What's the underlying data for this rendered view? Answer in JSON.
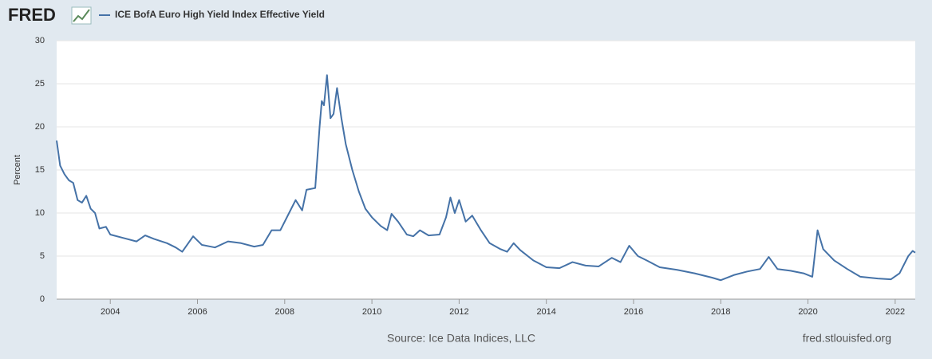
{
  "logo": "FRED",
  "chart_data": {
    "type": "line",
    "ylabel": "Percent",
    "source": "Source: Ice Data Indices, LLC",
    "site": "fred.stlouisfed.org",
    "x": [
      2002.77,
      2002.85,
      2002.95,
      2003.05,
      2003.15,
      2003.25,
      2003.35,
      2003.45,
      2003.55,
      2003.65,
      2003.75,
      2003.9,
      2004.0,
      2004.3,
      2004.6,
      2004.8,
      2005.0,
      2005.3,
      2005.5,
      2005.65,
      2005.9,
      2006.1,
      2006.4,
      2006.7,
      2007.0,
      2007.3,
      2007.5,
      2007.7,
      2007.9,
      2008.1,
      2008.25,
      2008.4,
      2008.5,
      2008.7,
      2008.8,
      2008.85,
      2008.9,
      2008.97,
      2009.05,
      2009.12,
      2009.2,
      2009.3,
      2009.4,
      2009.55,
      2009.7,
      2009.85,
      2010.0,
      2010.2,
      2010.35,
      2010.45,
      2010.6,
      2010.8,
      2010.95,
      2011.1,
      2011.3,
      2011.55,
      2011.7,
      2011.8,
      2011.9,
      2012.0,
      2012.15,
      2012.3,
      2012.5,
      2012.7,
      2012.95,
      2013.1,
      2013.25,
      2013.4,
      2013.7,
      2014.0,
      2014.3,
      2014.6,
      2014.9,
      2015.2,
      2015.5,
      2015.7,
      2015.9,
      2016.1,
      2016.3,
      2016.6,
      2017.0,
      2017.4,
      2017.8,
      2018.0,
      2018.3,
      2018.6,
      2018.9,
      2019.1,
      2019.3,
      2019.6,
      2019.9,
      2020.1,
      2020.22,
      2020.35,
      2020.6,
      2020.9,
      2021.2,
      2021.6,
      2021.9,
      2022.1,
      2022.3,
      2022.4,
      2022.46
    ],
    "series": [
      {
        "name": "ICE BofA Euro High Yield Index Effective Yield",
        "color": "#4572a7",
        "values": [
          18.4,
          15.5,
          14.5,
          13.8,
          13.5,
          11.5,
          11.2,
          12.0,
          10.5,
          10.0,
          8.2,
          8.4,
          7.5,
          7.1,
          6.7,
          7.4,
          7.0,
          6.5,
          6.0,
          5.5,
          7.3,
          6.3,
          6.0,
          6.7,
          6.5,
          6.1,
          6.3,
          8.0,
          8.0,
          10.0,
          11.5,
          10.3,
          12.7,
          12.9,
          20.0,
          23.0,
          22.5,
          26.0,
          21.0,
          21.5,
          24.5,
          21.0,
          18.0,
          15.0,
          12.5,
          10.5,
          9.5,
          8.5,
          8.0,
          9.9,
          9.0,
          7.5,
          7.3,
          8.0,
          7.4,
          7.5,
          9.5,
          11.8,
          10.0,
          11.5,
          9.0,
          9.7,
          8.0,
          6.5,
          5.8,
          5.5,
          6.5,
          5.7,
          4.5,
          3.7,
          3.6,
          4.3,
          3.9,
          3.8,
          4.8,
          4.3,
          6.2,
          5.0,
          4.5,
          3.7,
          3.4,
          3.0,
          2.5,
          2.2,
          2.8,
          3.2,
          3.5,
          4.9,
          3.5,
          3.3,
          3.0,
          2.6,
          8.0,
          5.8,
          4.5,
          3.5,
          2.6,
          2.4,
          2.3,
          3.0,
          5.0,
          5.6,
          5.4
        ]
      }
    ],
    "xlim": [
      2002.77,
      2022.46
    ],
    "xticks": [
      2004,
      2006,
      2008,
      2010,
      2012,
      2014,
      2016,
      2018,
      2020,
      2022
    ],
    "ylim": [
      0,
      30
    ],
    "yticks": [
      0,
      5,
      10,
      15,
      20,
      25,
      30
    ],
    "grid": true
  }
}
